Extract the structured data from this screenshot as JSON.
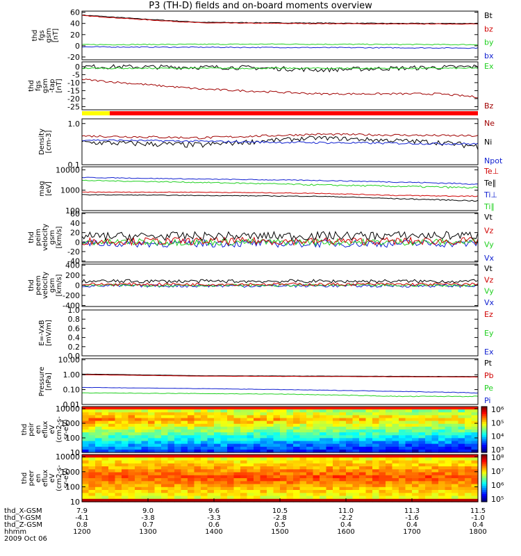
{
  "title": "P3 (TH-D) fields and on-board moments overview",
  "colors": {
    "black": "#000000",
    "red": "#d00000",
    "green": "#20d020",
    "blue": "#1020d0",
    "darkred": "#a00000"
  },
  "panels": [
    {
      "id": "fgs_gsm",
      "ylabel": [
        "thd",
        "fgs",
        "gsm",
        "[nT]"
      ],
      "ticks": [
        "60",
        "40",
        "20",
        "0",
        "-20"
      ],
      "tickv": [
        60,
        40,
        20,
        0,
        -20
      ],
      "ylim": [
        -25,
        62
      ],
      "legend": [
        {
          "name": "Bt",
          "color": "black"
        },
        {
          "name": "bz",
          "color": "red"
        },
        {
          "name": "by",
          "color": "green"
        },
        {
          "name": "bx",
          "color": "blue"
        }
      ],
      "series": [
        {
          "color": "black",
          "kn": [
            [
              0,
              55
            ],
            [
              0.15,
              48
            ],
            [
              0.3,
              42
            ],
            [
              0.5,
              41
            ],
            [
              0.8,
              40
            ],
            [
              1,
              40
            ]
          ],
          "noise": 0.6
        },
        {
          "color": "red",
          "kn": [
            [
              0,
              54
            ],
            [
              0.15,
              47
            ],
            [
              0.3,
              41
            ],
            [
              0.5,
              40
            ],
            [
              0.8,
              39
            ],
            [
              1,
              39
            ]
          ],
          "noise": 0.6
        },
        {
          "color": "green",
          "kn": [
            [
              0,
              2
            ],
            [
              0.5,
              3
            ],
            [
              1,
              2
            ]
          ],
          "noise": 0.8
        },
        {
          "color": "blue",
          "kn": [
            [
              0,
              -2
            ],
            [
              0.5,
              -3
            ],
            [
              1,
              -4
            ]
          ],
          "noise": 0.8
        }
      ]
    },
    {
      "id": "fgs_gse",
      "ylabel": [
        "thd",
        "fgs",
        "gsm",
        "-tap",
        "[nT]"
      ],
      "ticks": [
        "0",
        "-5",
        "-10",
        "-15",
        "-20",
        "-25"
      ],
      "tickv": [
        0,
        -5,
        -10,
        -15,
        -20,
        -25
      ],
      "ylim": [
        -27,
        3
      ],
      "legend": [
        {
          "name": "Ex",
          "color": "green"
        },
        {
          "name": "Bz",
          "color": "darkred"
        }
      ],
      "series": [
        {
          "color": "black",
          "kn": [
            [
              0,
              0
            ],
            [
              0.4,
              -0.5
            ],
            [
              0.6,
              -2
            ],
            [
              0.8,
              -1
            ],
            [
              1,
              0
            ]
          ],
          "noise": 1.4
        },
        {
          "color": "green",
          "kn": [
            [
              0,
              -1
            ],
            [
              0.5,
              -1
            ],
            [
              1,
              -1
            ]
          ],
          "noise": 0.4
        },
        {
          "color": "darkred",
          "kn": [
            [
              0,
              -8
            ],
            [
              0.1,
              -10
            ],
            [
              0.3,
              -14
            ],
            [
              0.6,
              -17
            ],
            [
              0.9,
              -17
            ],
            [
              1,
              -19
            ]
          ],
          "noise": 0.6
        }
      ]
    },
    {
      "id": "density",
      "ylabel": [
        "Density",
        "[cm-3]"
      ],
      "ticks": [
        "1.0",
        "0.1"
      ],
      "tickv": [
        1.0,
        0.1
      ],
      "ylim": [
        0.1,
        1.3
      ],
      "log": true,
      "legend": [
        {
          "name": "Ne",
          "color": "darkred"
        },
        {
          "name": "Ni",
          "color": "black"
        },
        {
          "name": "Npot",
          "color": "blue"
        }
      ],
      "series": [
        {
          "color": "darkred",
          "kn": [
            [
              0,
              0.5
            ],
            [
              0.3,
              0.45
            ],
            [
              0.6,
              0.55
            ],
            [
              1,
              0.5
            ]
          ],
          "noise": 0.03
        },
        {
          "color": "black",
          "kn": [
            [
              0,
              0.35
            ],
            [
              0.3,
              0.3
            ],
            [
              0.6,
              0.45
            ],
            [
              0.9,
              0.35
            ],
            [
              1,
              0.28
            ]
          ],
          "noise": 0.05
        },
        {
          "color": "blue",
          "kn": [
            [
              0,
              0.4
            ],
            [
              0.5,
              0.35
            ],
            [
              1,
              0.32
            ]
          ],
          "noise": 0.02
        }
      ]
    },
    {
      "id": "temps",
      "ylabel": [
        "mag",
        "[eV]"
      ],
      "ticks": [
        "10000",
        "1000",
        "100"
      ],
      "tickv": [
        10000,
        1000,
        100
      ],
      "ylim": [
        100,
        14000
      ],
      "log": true,
      "legend": [
        {
          "name": "Te⊥",
          "color": "red"
        },
        {
          "name": "Te∥",
          "color": "black"
        },
        {
          "name": "Ti⊥",
          "color": "blue"
        },
        {
          "name": "Ti∥",
          "color": "green"
        }
      ],
      "series": [
        {
          "color": "blue",
          "kn": [
            [
              0,
              4200
            ],
            [
              0.3,
              3500
            ],
            [
              0.6,
              3000
            ],
            [
              1,
              2000
            ]
          ],
          "noise": 150
        },
        {
          "color": "green",
          "kn": [
            [
              0,
              3000
            ],
            [
              0.3,
              2400
            ],
            [
              0.6,
              1800
            ],
            [
              1,
              1300
            ]
          ],
          "noise": 150
        },
        {
          "color": "red",
          "kn": [
            [
              0,
              800
            ],
            [
              0.3,
              800
            ],
            [
              0.6,
              700
            ],
            [
              0.8,
              550
            ],
            [
              1,
              500
            ]
          ],
          "noise": 30
        },
        {
          "color": "black",
          "kn": [
            [
              0,
              600
            ],
            [
              0.3,
              550
            ],
            [
              0.6,
              500
            ],
            [
              0.8,
              380
            ],
            [
              1,
              300
            ]
          ],
          "noise": 20
        }
      ]
    },
    {
      "id": "peim_vel",
      "ylabel": [
        "thd",
        "peim",
        "velocity",
        "gsm",
        "[km/s]"
      ],
      "ticks": [
        "60",
        "40",
        "20",
        "0",
        "-20",
        "-40"
      ],
      "tickv": [
        60,
        40,
        20,
        0,
        -20,
        -40
      ],
      "ylim": [
        -42,
        62
      ],
      "legend": [
        {
          "name": "Vt",
          "color": "black"
        },
        {
          "name": "Vz",
          "color": "red"
        },
        {
          "name": "Vy",
          "color": "green"
        },
        {
          "name": "Vx",
          "color": "blue"
        }
      ],
      "series": [
        {
          "color": "blue",
          "kn": [
            [
              0,
              -3
            ],
            [
              1,
              -3
            ]
          ],
          "noise": 8
        },
        {
          "color": "green",
          "kn": [
            [
              0,
              0
            ],
            [
              1,
              0
            ]
          ],
          "noise": 7
        },
        {
          "color": "red",
          "kn": [
            [
              0,
              2
            ],
            [
              1,
              2
            ]
          ],
          "noise": 8
        },
        {
          "color": "black",
          "kn": [
            [
              0,
              12
            ],
            [
              1,
              14
            ]
          ],
          "noise": 9
        }
      ]
    },
    {
      "id": "peem_vel",
      "ylabel": [
        "thd",
        "peem",
        "velocity",
        "gsm",
        "[km/s]"
      ],
      "ticks": [
        "400",
        "200",
        "0",
        "-200",
        "-400"
      ],
      "tickv": [
        400,
        200,
        0,
        -200,
        -400
      ],
      "ylim": [
        -420,
        420
      ],
      "legend": [
        {
          "name": "Vt",
          "color": "black"
        },
        {
          "name": "Vz",
          "color": "red"
        },
        {
          "name": "Vy",
          "color": "green"
        },
        {
          "name": "Vx",
          "color": "blue"
        }
      ],
      "series": [
        {
          "color": "blue",
          "kn": [
            [
              0,
              -10
            ],
            [
              1,
              -10
            ]
          ],
          "noise": 30
        },
        {
          "color": "green",
          "kn": [
            [
              0,
              0
            ],
            [
              1,
              0
            ]
          ],
          "noise": 25
        },
        {
          "color": "red",
          "kn": [
            [
              0,
              20
            ],
            [
              1,
              20
            ]
          ],
          "noise": 30
        },
        {
          "color": "black",
          "kn": [
            [
              0,
              80
            ],
            [
              1,
              80
            ]
          ],
          "noise": 35
        }
      ]
    },
    {
      "id": "exb",
      "ylabel": [
        "E=-VxB",
        "[mV/m]"
      ],
      "ticks": [
        "1.0",
        "0.8",
        "0.6",
        "0.4",
        "0.2",
        "0.0"
      ],
      "tickv": [
        1,
        0.8,
        0.6,
        0.4,
        0.2,
        0
      ],
      "ylim": [
        0,
        1
      ],
      "legend": [
        {
          "name": "Ez",
          "color": "red"
        },
        {
          "name": "Ey",
          "color": "green"
        },
        {
          "name": "Ex",
          "color": "blue"
        }
      ],
      "series": []
    },
    {
      "id": "pressure",
      "ylabel": [
        "Pressure",
        "[nPa]"
      ],
      "ticks": [
        "10.00",
        "1.00",
        "0.10",
        "0.01"
      ],
      "tickv": [
        10,
        1,
        0.1,
        0.01
      ],
      "ylim": [
        0.01,
        12
      ],
      "log": true,
      "legend": [
        {
          "name": "Pt",
          "color": "black"
        },
        {
          "name": "Pb",
          "color": "red"
        },
        {
          "name": "Pe",
          "color": "green"
        },
        {
          "name": "Pi",
          "color": "blue"
        }
      ],
      "series": [
        {
          "color": "black",
          "kn": [
            [
              0,
              1.1
            ],
            [
              0.3,
              0.85
            ],
            [
              1,
              0.75
            ]
          ],
          "noise": 0.01
        },
        {
          "color": "red",
          "kn": [
            [
              0,
              1.0
            ],
            [
              0.3,
              0.8
            ],
            [
              1,
              0.7
            ]
          ],
          "noise": 0.01
        },
        {
          "color": "blue",
          "kn": [
            [
              0,
              0.14
            ],
            [
              0.5,
              0.1
            ],
            [
              1,
              0.06
            ]
          ],
          "noise": 0.003
        },
        {
          "color": "green",
          "kn": [
            [
              0,
              0.06
            ],
            [
              0.5,
              0.05
            ],
            [
              0.8,
              0.035
            ],
            [
              1,
              0.035
            ]
          ],
          "noise": 0.002
        }
      ]
    },
    {
      "id": "peir",
      "ylabel": [
        "thd",
        "peir",
        "en",
        "eflux",
        "eV",
        "(cm2-s-",
        "sr-eV)"
      ],
      "ticks": [
        "10000",
        "1000",
        "100",
        "10"
      ],
      "tickv": [
        10000,
        1000,
        100,
        10
      ],
      "ylim": [
        10,
        14000
      ],
      "log": true,
      "colorbar": [
        "10⁶",
        "10⁵",
        "10⁴",
        "10³"
      ],
      "spectro": "ion",
      "legend": [],
      "series": []
    },
    {
      "id": "peer",
      "ylabel": [
        "thd",
        "peer",
        "en",
        "eflux",
        "eV",
        "(cm2-s-",
        "sr-eV)"
      ],
      "ticks": [
        "10000",
        "1000",
        "100",
        "10"
      ],
      "tickv": [
        10000,
        1000,
        100,
        10
      ],
      "ylim": [
        10,
        14000
      ],
      "log": true,
      "colorbar": [
        "10⁸",
        "10⁷",
        "10⁶",
        "10⁵"
      ],
      "spectro": "elec",
      "legend": [],
      "series": []
    }
  ],
  "xaxis": {
    "rows": [
      {
        "label": "thd_X-GSM",
        "values": [
          "7.9",
          "9.0",
          "9.6",
          "10.5",
          "11.0",
          "11.3",
          "11.5"
        ]
      },
      {
        "label": "thd_Y-GSM",
        "values": [
          "-4.1",
          "-3.8",
          "-3.3",
          "-2.8",
          "-2.2",
          "-1.6",
          "-1.0"
        ]
      },
      {
        "label": "thd_Z-GSM",
        "values": [
          "0.8",
          "0.7",
          "0.6",
          "0.5",
          "0.4",
          "0.4",
          "0.4"
        ]
      },
      {
        "label": "hhmm",
        "values": [
          "1200",
          "1300",
          "1400",
          "1500",
          "1600",
          "1700",
          "1800"
        ]
      }
    ],
    "date": "2009 Oct 06"
  }
}
